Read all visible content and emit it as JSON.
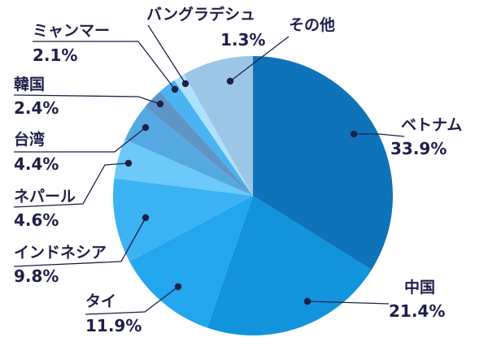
{
  "chart_data": {
    "type": "pie",
    "start_angle_deg": 0,
    "direction": "clockwise",
    "slices": [
      {
        "label": "ベトナム",
        "value_text": "33.9%",
        "value": 33.9,
        "color": "#0e73b9"
      },
      {
        "label": "中国",
        "value_text": "21.4%",
        "value": 21.4,
        "color": "#1194dc"
      },
      {
        "label": "タイ",
        "value_text": "11.9%",
        "value": 11.9,
        "color": "#22a6ee"
      },
      {
        "label": "インドネシア",
        "value_text": "9.8%",
        "value": 9.8,
        "color": "#3bb3f3"
      },
      {
        "label": "ネパール",
        "value_text": "4.6%",
        "value": 4.6,
        "color": "#6dc9f9"
      },
      {
        "label": "台湾",
        "value_text": "4.4%",
        "value": 4.4,
        "color": "#55a9e2"
      },
      {
        "label": "韓国",
        "value_text": "2.4%",
        "value": 2.4,
        "color": "#5f95c6"
      },
      {
        "label": "ミャンマー",
        "value_text": "2.1%",
        "value": 2.1,
        "color": "#48b4f2"
      },
      {
        "label": "バングラデシュ",
        "value_text": "1.3%",
        "value": 1.3,
        "color": "#aee1fb"
      },
      {
        "label": "その他",
        "value_text": "",
        "value": 8.2,
        "color": "#9cc6e6"
      }
    ]
  }
}
